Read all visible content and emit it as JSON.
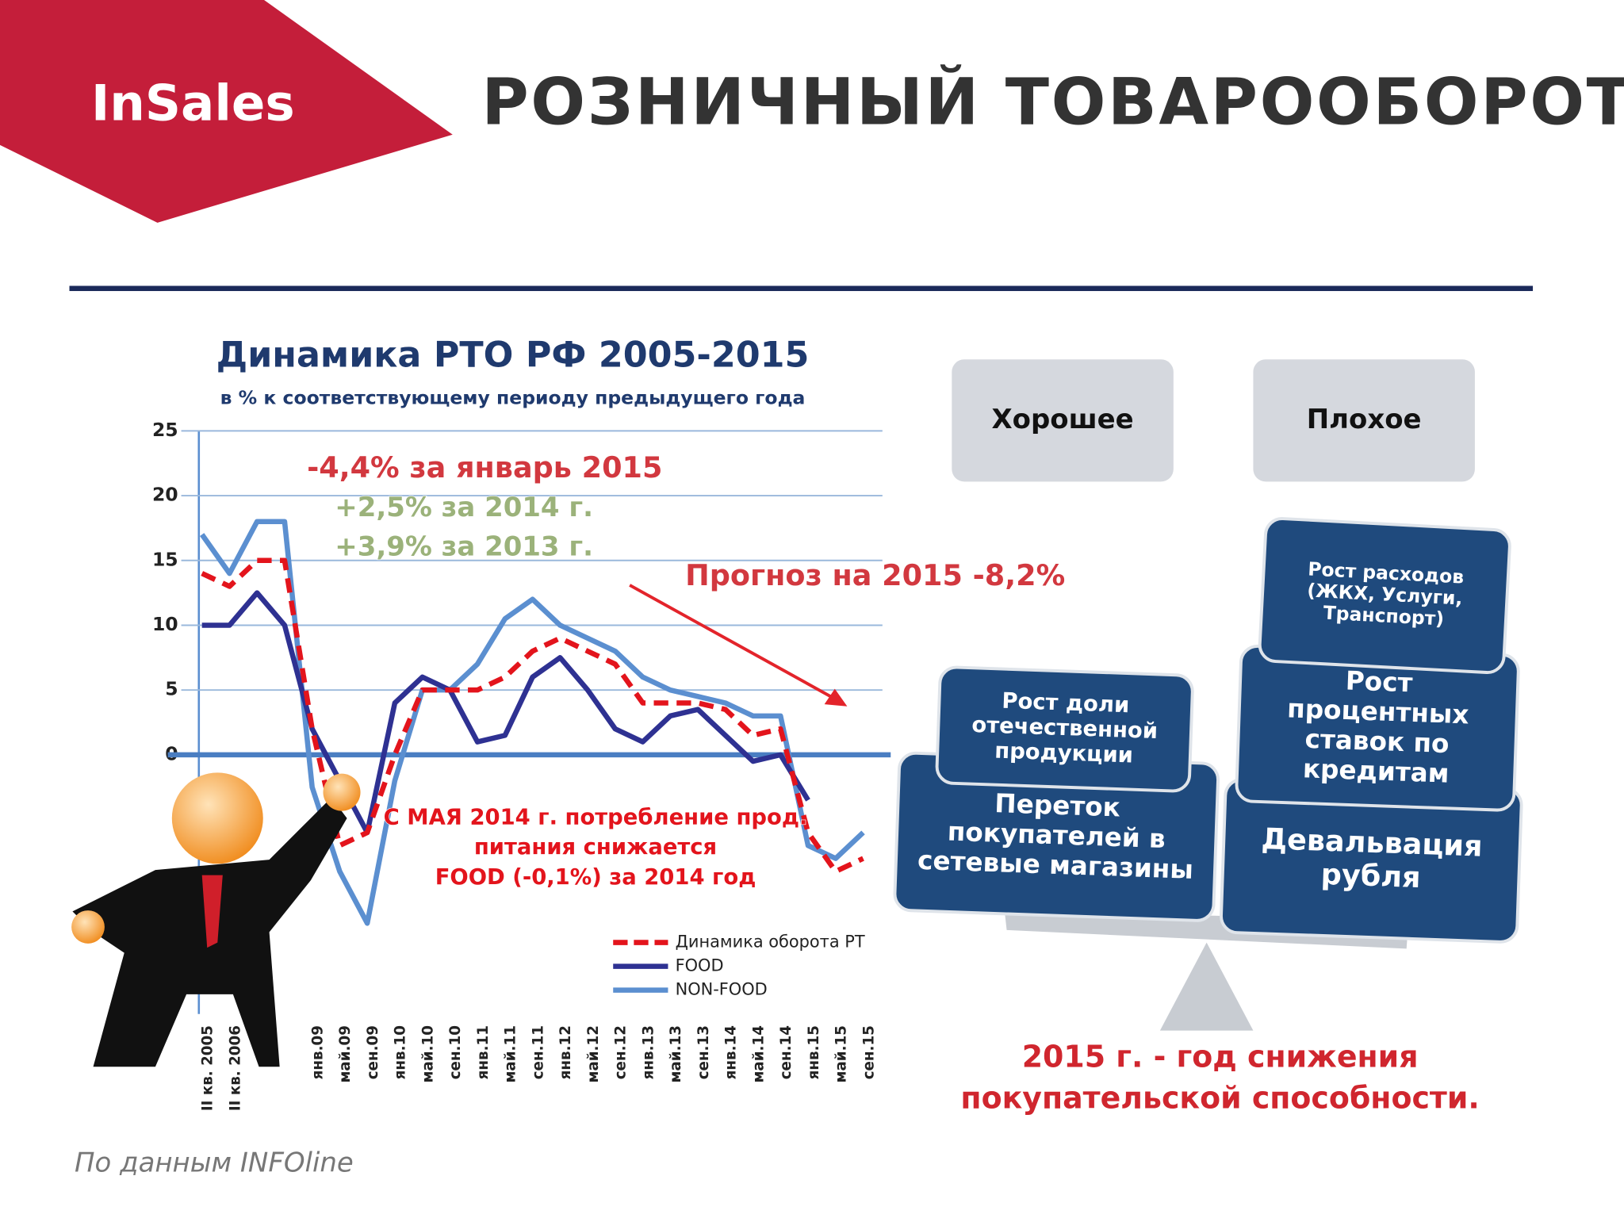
{
  "header": {
    "logo": "InSales",
    "title": "РОЗНИЧНЫЙ ТОВАРООБОРОТ"
  },
  "chart_data": {
    "type": "line",
    "title": "Динамика РТО РФ 2005-2015",
    "subtitle": "в % к соответствующему периоду предыдущего года",
    "categories": [
      "II кв. 2005",
      "II кв. 2006",
      null,
      null,
      "янв.09",
      "май.09",
      "сен.09",
      "янв.10",
      "май.10",
      "сен.10",
      "янв.11",
      "май.11",
      "сен.11",
      "янв.12",
      "май.12",
      "сен.12",
      "янв.13",
      "май.13",
      "сен.13",
      "янв.14",
      "май.14",
      "сен.14",
      "янв.15",
      "май.15",
      "сен.15"
    ],
    "series": [
      {
        "name": "Динамика оборота РТ",
        "color": "#e3141c",
        "dashed": true,
        "values": [
          14,
          13,
          15,
          15,
          2,
          -7,
          -6,
          0,
          5,
          5,
          5,
          6,
          8,
          9,
          8,
          7,
          4,
          4,
          4,
          3.5,
          1.5,
          2,
          -6,
          -9,
          -8
        ]
      },
      {
        "name": "FOOD",
        "color": "#2e3192",
        "dashed": false,
        "values": [
          10,
          10,
          12.5,
          10,
          2,
          -2,
          -6,
          4,
          6,
          5,
          1,
          1.5,
          6,
          7.5,
          5,
          2,
          1,
          3,
          3.5,
          1.5,
          -0.5,
          0,
          -3.5,
          null,
          null
        ]
      },
      {
        "name": "NON-FOOD",
        "color": "#5b8fd0",
        "dashed": false,
        "values": [
          17,
          14,
          18,
          18,
          -2.5,
          -9,
          -13,
          -2,
          5,
          5,
          7,
          10.5,
          12,
          10,
          9,
          8,
          6,
          5,
          4.5,
          4,
          3,
          3,
          -7,
          -8,
          -6
        ]
      }
    ],
    "ylim": [
      -20,
      25
    ],
    "yticks": [
      0,
      5,
      10,
      15,
      20,
      25
    ],
    "grid": true,
    "annotations": [
      {
        "text": "-4,4% за январь 2015",
        "color": "#d2383f"
      },
      {
        "text": "+2,5% за 2014 г.",
        "color": "#9bb27a"
      },
      {
        "text": "+3,9% за 2013 г.",
        "color": "#9bb27a"
      },
      {
        "text": "Прогноз на 2015 -8,2%",
        "color": "#d2383f"
      },
      {
        "text": "С МАЯ 2014 г. потребление прод.",
        "color": "#e3141c"
      },
      {
        "text": "питания снижается",
        "color": "#e3141c"
      },
      {
        "text": "FOOD (-0,1%) за 2014 год",
        "color": "#e3141c"
      }
    ]
  },
  "balance": {
    "good": {
      "label": "Хорошее",
      "items": [
        [
          "Рост доли",
          "отечественной",
          "продукции"
        ],
        [
          "Переток",
          "покупателей в",
          "сетевые магазины"
        ]
      ]
    },
    "bad": {
      "label": "Плохое",
      "items": [
        [
          "Рост расходов",
          "(ЖКХ, Услуги,",
          "Транспорт)"
        ],
        [
          "Рост",
          "процентных",
          "ставок по",
          "кредитам"
        ],
        [
          "Девальвация",
          "рубля"
        ]
      ]
    },
    "conclusion": [
      "2015 г.  - год снижения",
      "покупательской способности."
    ]
  },
  "source": "По данным INFOline"
}
